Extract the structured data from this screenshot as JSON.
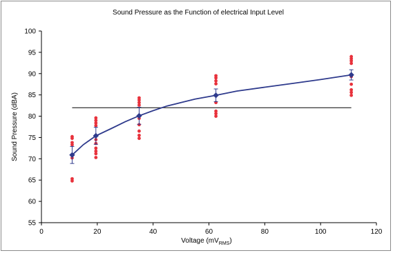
{
  "chart_data": {
    "type": "scatter",
    "title": "Sound Pressure as the Function of electrical Input Level",
    "xlabel": "Voltage (mV",
    "xlabel_subscript": "RMS",
    "xlabel_suffix": ")",
    "ylabel": "Sound Pressure (dBA)",
    "xlim": [
      0,
      120
    ],
    "ylim": [
      55,
      100
    ],
    "xticks": [
      0,
      20,
      40,
      60,
      80,
      100,
      120
    ],
    "yticks": [
      55,
      60,
      65,
      70,
      75,
      80,
      85,
      90,
      95,
      100
    ],
    "grid": false,
    "legend": "none",
    "series": [
      {
        "role": "individual measurements",
        "color": "#e8323c",
        "marker": "circle",
        "points": [
          [
            11,
            75.2
          ],
          [
            11,
            74.8
          ],
          [
            11,
            73.8
          ],
          [
            11,
            73.3
          ],
          [
            11,
            71.0
          ],
          [
            11,
            70.2
          ],
          [
            11,
            65.3
          ],
          [
            11,
            64.8
          ],
          [
            19.5,
            79.6
          ],
          [
            19.5,
            79.0
          ],
          [
            19.5,
            78.4
          ],
          [
            19.5,
            77.8
          ],
          [
            19.5,
            74.5
          ],
          [
            19.5,
            73.6
          ],
          [
            19.5,
            72.5
          ],
          [
            19.5,
            71.8
          ],
          [
            19.5,
            71.2
          ],
          [
            19.5,
            70.3
          ],
          [
            35,
            84.3
          ],
          [
            35,
            83.8
          ],
          [
            35,
            83.2
          ],
          [
            35,
            82.6
          ],
          [
            35,
            79.5
          ],
          [
            35,
            78.0
          ],
          [
            35,
            76.5
          ],
          [
            35,
            75.5
          ],
          [
            35,
            74.8
          ],
          [
            62.5,
            89.5
          ],
          [
            62.5,
            89.0
          ],
          [
            62.5,
            88.3
          ],
          [
            62.5,
            87.6
          ],
          [
            62.5,
            83.2
          ],
          [
            62.5,
            81.2
          ],
          [
            62.5,
            80.6
          ],
          [
            62.5,
            80.0
          ],
          [
            111,
            94.0
          ],
          [
            111,
            93.5
          ],
          [
            111,
            93.0
          ],
          [
            111,
            92.4
          ],
          [
            111,
            89.3
          ],
          [
            111,
            87.5
          ],
          [
            111,
            86.2
          ],
          [
            111,
            85.6
          ],
          [
            111,
            84.9
          ]
        ]
      },
      {
        "role": "mean",
        "color": "#2e3a8c",
        "marker": "diamond",
        "points": [
          [
            11,
            70.9
          ],
          [
            19.5,
            75.4
          ],
          [
            35,
            80.1
          ],
          [
            62.5,
            84.9
          ],
          [
            111,
            89.7
          ]
        ],
        "error": [
          2.0,
          2.0,
          2.0,
          1.5,
          1.2
        ]
      }
    ],
    "fit_curve": {
      "color": "#2e3a8c",
      "points": [
        [
          11,
          70.9
        ],
        [
          15,
          73.3
        ],
        [
          19.5,
          75.4
        ],
        [
          25,
          77.1
        ],
        [
          30,
          78.7
        ],
        [
          35,
          80.1
        ],
        [
          40,
          81.3
        ],
        [
          45,
          82.4
        ],
        [
          50,
          83.2
        ],
        [
          55,
          84.0
        ],
        [
          62.5,
          84.9
        ],
        [
          70,
          85.9
        ],
        [
          80,
          86.8
        ],
        [
          90,
          87.7
        ],
        [
          100,
          88.6
        ],
        [
          111,
          89.7
        ]
      ]
    },
    "reference_line": {
      "y": 82,
      "x_range": [
        11,
        111
      ],
      "color": "#000000"
    }
  }
}
